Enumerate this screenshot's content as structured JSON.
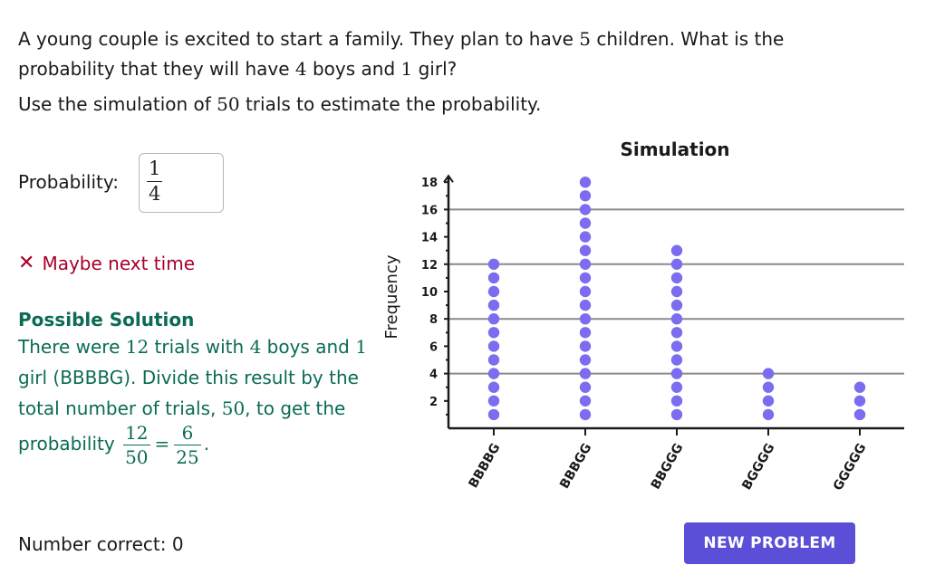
{
  "question": {
    "part1": "A young couple is excited to start a family. They plan to have ",
    "n_children": "5",
    "part2": " children. What is the probability that they will have ",
    "n_boys": "4",
    "part3": " boys and ",
    "n_girls": "1",
    "part4": " girl?"
  },
  "instruction": {
    "part1": "Use the simulation of ",
    "trials": "50",
    "part2": " trials to estimate the probability."
  },
  "answer": {
    "label": "Probability:",
    "numerator": "1",
    "denominator": "4"
  },
  "feedback": {
    "icon": "close-icon",
    "text": "Maybe next time",
    "color": "#a8002a"
  },
  "solution": {
    "title": "Possible Solution",
    "t1": "There were ",
    "count": "12",
    "t2": " trials with ",
    "boys": "4",
    "t3": " boys and ",
    "girls": "1",
    "t4": " girl (BBBBG). Divide this result by the total number of trials, ",
    "total": "50",
    "t5": ", to get the probability ",
    "frac1_num": "12",
    "frac1_den": "50",
    "eq": "=",
    "frac2_num": "6",
    "frac2_den": "25",
    "t6": ".",
    "color": "#0b6b55"
  },
  "score": {
    "label": "Number correct:",
    "value": "0"
  },
  "button": {
    "label": "NEW PROBLEM",
    "color": "#5a4fd6"
  },
  "chart_data": {
    "type": "scatter",
    "title": "Simulation",
    "xlabel": "",
    "ylabel": "Frequency",
    "categories": [
      "BBBBG",
      "BBBGG",
      "BBGGG",
      "BGGGG",
      "GGGGG"
    ],
    "values": [
      12,
      18,
      13,
      4,
      3
    ],
    "ylim": [
      0,
      18
    ],
    "yticks": [
      2,
      4,
      6,
      8,
      10,
      12,
      14,
      16,
      18
    ],
    "gridlines": [
      4,
      8,
      12,
      16
    ],
    "dot_color": "#7b6cf0",
    "grid": true
  }
}
